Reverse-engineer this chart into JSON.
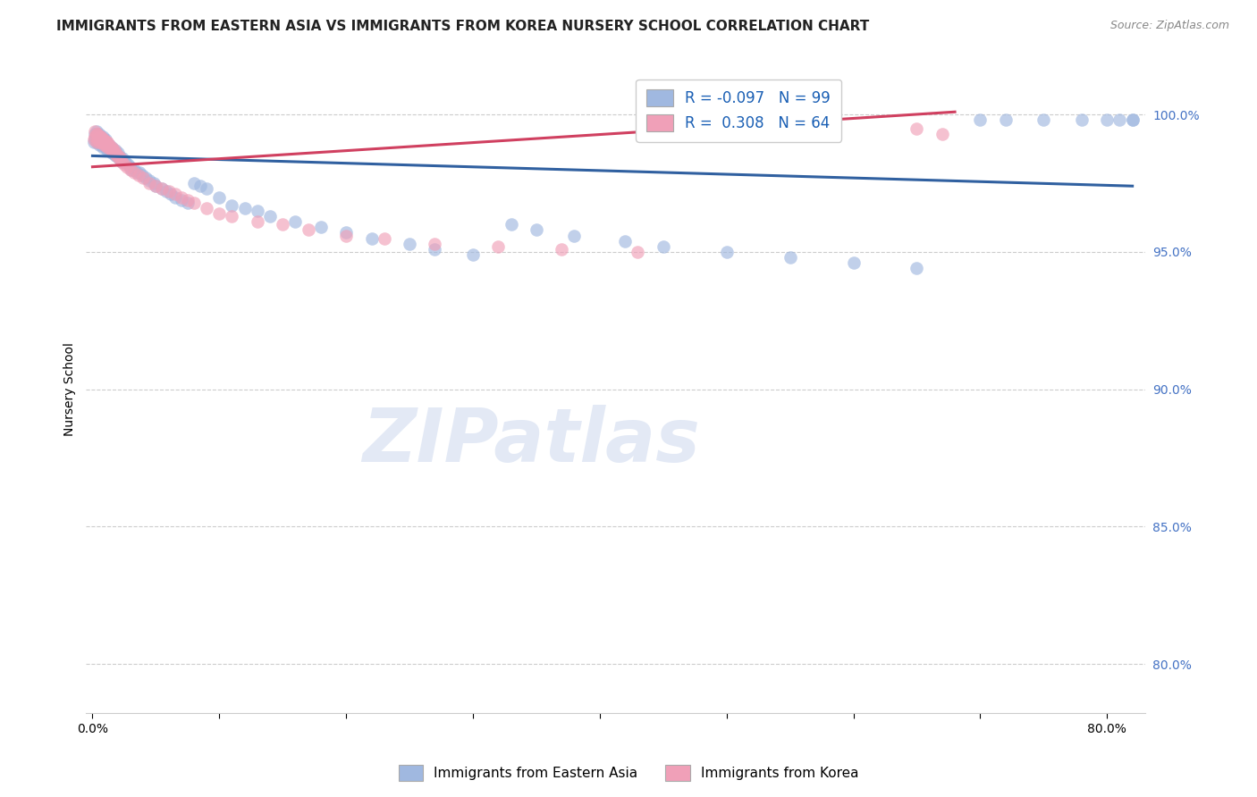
{
  "title": "IMMIGRANTS FROM EASTERN ASIA VS IMMIGRANTS FROM KOREA NURSERY SCHOOL CORRELATION CHART",
  "source": "Source: ZipAtlas.com",
  "ylabel": "Nursery School",
  "y_ticks": [
    0.8,
    0.85,
    0.9,
    0.95,
    1.0
  ],
  "y_tick_labels": [
    "80.0%",
    "85.0%",
    "90.0%",
    "95.0%",
    "100.0%"
  ],
  "xlim": [
    -0.005,
    0.83
  ],
  "ylim": [
    0.782,
    1.018
  ],
  "blue_R": -0.097,
  "blue_N": 99,
  "pink_R": 0.308,
  "pink_N": 64,
  "blue_color": "#a0b8e0",
  "pink_color": "#f0a0b8",
  "blue_line_color": "#3060a0",
  "pink_line_color": "#d04060",
  "watermark_text": "ZIPatlas",
  "blue_trend_x0": 0.0,
  "blue_trend_x1": 0.82,
  "blue_trend_y0": 0.985,
  "blue_trend_y1": 0.974,
  "pink_trend_x0": 0.0,
  "pink_trend_x1": 0.68,
  "pink_trend_y0": 0.981,
  "pink_trend_y1": 1.001,
  "blue_scatter_x": [
    0.001,
    0.002,
    0.002,
    0.003,
    0.003,
    0.003,
    0.004,
    0.004,
    0.004,
    0.005,
    0.005,
    0.005,
    0.006,
    0.006,
    0.006,
    0.007,
    0.007,
    0.007,
    0.008,
    0.008,
    0.008,
    0.009,
    0.009,
    0.01,
    0.01,
    0.01,
    0.011,
    0.011,
    0.012,
    0.012,
    0.013,
    0.013,
    0.014,
    0.014,
    0.015,
    0.015,
    0.016,
    0.016,
    0.017,
    0.018,
    0.018,
    0.019,
    0.02,
    0.02,
    0.021,
    0.022,
    0.023,
    0.024,
    0.025,
    0.026,
    0.028,
    0.03,
    0.031,
    0.033,
    0.035,
    0.037,
    0.039,
    0.042,
    0.045,
    0.048,
    0.05,
    0.055,
    0.058,
    0.062,
    0.065,
    0.07,
    0.075,
    0.08,
    0.085,
    0.09,
    0.1,
    0.11,
    0.12,
    0.13,
    0.14,
    0.16,
    0.18,
    0.2,
    0.22,
    0.25,
    0.27,
    0.3,
    0.33,
    0.35,
    0.38,
    0.42,
    0.45,
    0.5,
    0.55,
    0.6,
    0.65,
    0.7,
    0.72,
    0.75,
    0.78,
    0.8,
    0.81,
    0.82,
    0.82
  ],
  "blue_scatter_y": [
    0.99,
    0.991,
    0.993,
    0.99,
    0.992,
    0.994,
    0.99,
    0.992,
    0.993,
    0.989,
    0.991,
    0.993,
    0.99,
    0.991,
    0.992,
    0.989,
    0.991,
    0.992,
    0.988,
    0.99,
    0.992,
    0.989,
    0.991,
    0.988,
    0.99,
    0.991,
    0.988,
    0.989,
    0.987,
    0.989,
    0.987,
    0.989,
    0.987,
    0.988,
    0.986,
    0.988,
    0.986,
    0.987,
    0.986,
    0.985,
    0.987,
    0.985,
    0.985,
    0.986,
    0.984,
    0.984,
    0.983,
    0.984,
    0.983,
    0.983,
    0.982,
    0.981,
    0.98,
    0.98,
    0.979,
    0.979,
    0.978,
    0.977,
    0.976,
    0.975,
    0.974,
    0.973,
    0.972,
    0.971,
    0.97,
    0.969,
    0.968,
    0.975,
    0.974,
    0.973,
    0.97,
    0.967,
    0.966,
    0.965,
    0.963,
    0.961,
    0.959,
    0.957,
    0.955,
    0.953,
    0.951,
    0.949,
    0.96,
    0.958,
    0.956,
    0.954,
    0.952,
    0.95,
    0.948,
    0.946,
    0.944,
    0.998,
    0.998,
    0.998,
    0.998,
    0.998,
    0.998,
    0.998,
    0.998
  ],
  "pink_scatter_x": [
    0.001,
    0.002,
    0.002,
    0.003,
    0.003,
    0.004,
    0.004,
    0.005,
    0.005,
    0.006,
    0.006,
    0.007,
    0.007,
    0.008,
    0.008,
    0.009,
    0.009,
    0.01,
    0.01,
    0.011,
    0.011,
    0.012,
    0.012,
    0.013,
    0.013,
    0.014,
    0.015,
    0.015,
    0.016,
    0.017,
    0.018,
    0.019,
    0.02,
    0.021,
    0.022,
    0.023,
    0.025,
    0.027,
    0.03,
    0.033,
    0.036,
    0.04,
    0.045,
    0.05,
    0.055,
    0.06,
    0.065,
    0.07,
    0.075,
    0.08,
    0.09,
    0.1,
    0.11,
    0.13,
    0.15,
    0.17,
    0.2,
    0.23,
    0.27,
    0.32,
    0.37,
    0.43,
    0.65,
    0.67
  ],
  "pink_scatter_y": [
    0.991,
    0.992,
    0.994,
    0.99,
    0.993,
    0.991,
    0.993,
    0.99,
    0.992,
    0.991,
    0.992,
    0.99,
    0.992,
    0.99,
    0.991,
    0.989,
    0.991,
    0.989,
    0.99,
    0.989,
    0.99,
    0.988,
    0.99,
    0.988,
    0.989,
    0.988,
    0.987,
    0.988,
    0.987,
    0.987,
    0.986,
    0.985,
    0.985,
    0.984,
    0.984,
    0.983,
    0.982,
    0.981,
    0.98,
    0.979,
    0.978,
    0.977,
    0.975,
    0.974,
    0.973,
    0.972,
    0.971,
    0.97,
    0.969,
    0.968,
    0.966,
    0.964,
    0.963,
    0.961,
    0.96,
    0.958,
    0.956,
    0.955,
    0.953,
    0.952,
    0.951,
    0.95,
    0.995,
    0.993
  ],
  "grid_color": "#cccccc",
  "background_color": "#ffffff",
  "title_fontsize": 11,
  "tick_fontsize": 10,
  "legend_fontsize": 11
}
